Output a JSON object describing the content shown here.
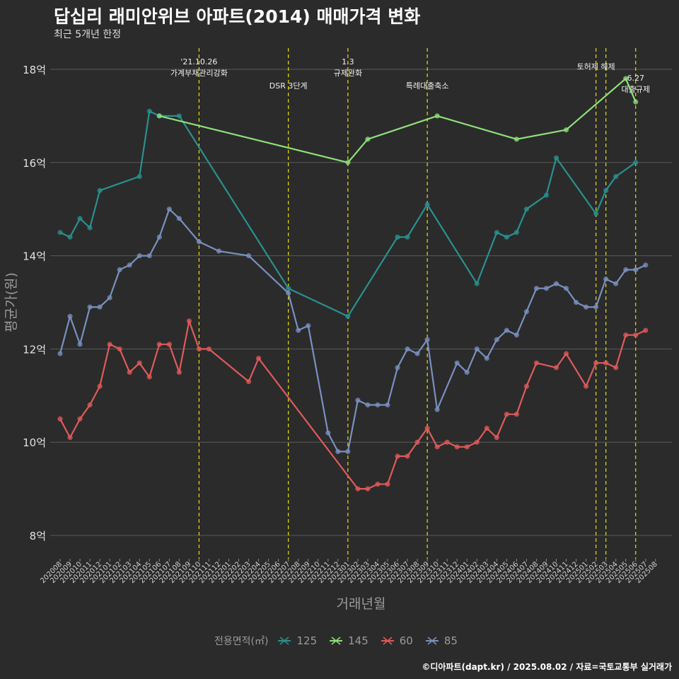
{
  "title": "답십리 래미안위브 아파트(2014) 매매가격 변화",
  "subtitle": "최근 5개년 한정",
  "caption": "©디아파트(dapt.kr) / 2025.08.02 / 자료=국토교통부 실거래가",
  "chart_data": {
    "type": "line",
    "xlabel": "거래년월",
    "ylabel": "평균가(원)",
    "ylim": [
      7.5,
      18.5
    ],
    "yticks": [
      8,
      10,
      12,
      14,
      16,
      18
    ],
    "ytick_labels": [
      "8억",
      "10억",
      "12억",
      "14억",
      "16억",
      "18억"
    ],
    "grid": true,
    "legend_title": "전용면적(㎡)",
    "legend_position": "bottom",
    "categories": [
      "202008",
      "202009",
      "202010",
      "202011",
      "202012",
      "202101",
      "202102",
      "202103",
      "202104",
      "202105",
      "202106",
      "202107",
      "202108",
      "202109",
      "202110",
      "202111",
      "202112",
      "202201",
      "202202",
      "202203",
      "202204",
      "202205",
      "202206",
      "202207",
      "202208",
      "202209",
      "202210",
      "202211",
      "202212",
      "202301",
      "202302",
      "202303",
      "202304",
      "202305",
      "202306",
      "202307",
      "202308",
      "202309",
      "202310",
      "202311",
      "202312",
      "202401",
      "202402",
      "202403",
      "202404",
      "202405",
      "202406",
      "202407",
      "202408",
      "202409",
      "202410",
      "202411",
      "202412",
      "202501",
      "202502",
      "202503",
      "202504",
      "202505",
      "202506",
      "202507",
      "202508"
    ],
    "series": [
      {
        "name": "125",
        "color": "#2a9090",
        "points": [
          [
            "202008",
            14.5
          ],
          [
            "202009",
            14.4
          ],
          [
            "202010",
            14.8
          ],
          [
            "202011",
            14.6
          ],
          [
            "202012",
            15.4
          ],
          [
            "202104",
            15.7
          ],
          [
            "202105",
            17.1
          ],
          [
            "202106",
            17.0
          ],
          [
            "202108",
            17.0
          ],
          [
            "202207",
            13.3
          ],
          [
            "202301",
            12.7
          ],
          [
            "202306",
            14.4
          ],
          [
            "202307",
            14.4
          ],
          [
            "202309",
            15.1
          ],
          [
            "202402",
            13.4
          ],
          [
            "202404",
            14.5
          ],
          [
            "202405",
            14.4
          ],
          [
            "202406",
            14.5
          ],
          [
            "202407",
            15.0
          ],
          [
            "202409",
            15.3
          ],
          [
            "202410",
            16.1
          ],
          [
            "202502",
            14.9
          ],
          [
            "202503",
            15.4
          ],
          [
            "202504",
            15.7
          ],
          [
            "202506",
            16.0
          ]
        ]
      },
      {
        "name": "145",
        "color": "#8fe07a",
        "points": [
          [
            "202106",
            17.0
          ],
          [
            "202301",
            16.0
          ],
          [
            "202303",
            16.5
          ],
          [
            "202310",
            17.0
          ],
          [
            "202406",
            16.5
          ],
          [
            "202411",
            16.7
          ],
          [
            "202505",
            17.8
          ],
          [
            "202506",
            17.3
          ]
        ]
      },
      {
        "name": "60",
        "color": "#e05a5a",
        "points": [
          [
            "202008",
            10.5
          ],
          [
            "202009",
            10.1
          ],
          [
            "202010",
            10.5
          ],
          [
            "202011",
            10.8
          ],
          [
            "202012",
            11.2
          ],
          [
            "202101",
            12.1
          ],
          [
            "202102",
            12.0
          ],
          [
            "202103",
            11.5
          ],
          [
            "202104",
            11.7
          ],
          [
            "202105",
            11.4
          ],
          [
            "202106",
            12.1
          ],
          [
            "202107",
            12.1
          ],
          [
            "202108",
            11.5
          ],
          [
            "202109",
            12.6
          ],
          [
            "202110",
            12.0
          ],
          [
            "202111",
            12.0
          ],
          [
            "202203",
            11.3
          ],
          [
            "202204",
            11.8
          ],
          [
            "202302",
            9.0
          ],
          [
            "202303",
            9.0
          ],
          [
            "202304",
            9.1
          ],
          [
            "202305",
            9.1
          ],
          [
            "202306",
            9.7
          ],
          [
            "202307",
            9.7
          ],
          [
            "202308",
            10.0
          ],
          [
            "202309",
            10.3
          ],
          [
            "202310",
            9.9
          ],
          [
            "202311",
            10.0
          ],
          [
            "202312",
            9.9
          ],
          [
            "202401",
            9.9
          ],
          [
            "202402",
            10.0
          ],
          [
            "202403",
            10.3
          ],
          [
            "202404",
            10.1
          ],
          [
            "202405",
            10.6
          ],
          [
            "202406",
            10.6
          ],
          [
            "202407",
            11.2
          ],
          [
            "202408",
            11.7
          ],
          [
            "202410",
            11.6
          ],
          [
            "202411",
            11.9
          ],
          [
            "202501",
            11.2
          ],
          [
            "202502",
            11.7
          ],
          [
            "202503",
            11.7
          ],
          [
            "202504",
            11.6
          ],
          [
            "202505",
            12.3
          ],
          [
            "202506",
            12.3
          ],
          [
            "202507",
            12.4
          ]
        ]
      },
      {
        "name": "85",
        "color": "#7a90c0",
        "points": [
          [
            "202008",
            11.9
          ],
          [
            "202009",
            12.7
          ],
          [
            "202010",
            12.1
          ],
          [
            "202011",
            12.9
          ],
          [
            "202012",
            12.9
          ],
          [
            "202101",
            13.1
          ],
          [
            "202102",
            13.7
          ],
          [
            "202103",
            13.8
          ],
          [
            "202104",
            14.0
          ],
          [
            "202105",
            14.0
          ],
          [
            "202106",
            14.4
          ],
          [
            "202107",
            15.0
          ],
          [
            "202108",
            14.8
          ],
          [
            "202110",
            14.3
          ],
          [
            "202112",
            14.1
          ],
          [
            "202203",
            14.0
          ],
          [
            "202207",
            13.2
          ],
          [
            "202208",
            12.4
          ],
          [
            "202209",
            12.5
          ],
          [
            "202211",
            10.2
          ],
          [
            "202212",
            9.8
          ],
          [
            "202301",
            9.8
          ],
          [
            "202302",
            10.9
          ],
          [
            "202303",
            10.8
          ],
          [
            "202304",
            10.8
          ],
          [
            "202305",
            10.8
          ],
          [
            "202306",
            11.6
          ],
          [
            "202307",
            12.0
          ],
          [
            "202308",
            11.9
          ],
          [
            "202309",
            12.2
          ],
          [
            "202310",
            10.7
          ],
          [
            "202312",
            11.7
          ],
          [
            "202401",
            11.5
          ],
          [
            "202402",
            12.0
          ],
          [
            "202403",
            11.8
          ],
          [
            "202404",
            12.2
          ],
          [
            "202405",
            12.4
          ],
          [
            "202406",
            12.3
          ],
          [
            "202407",
            12.8
          ],
          [
            "202408",
            13.3
          ],
          [
            "202409",
            13.3
          ],
          [
            "202410",
            13.4
          ],
          [
            "202411",
            13.3
          ],
          [
            "202412",
            13.0
          ],
          [
            "202501",
            12.9
          ],
          [
            "202502",
            12.9
          ],
          [
            "202503",
            13.5
          ],
          [
            "202504",
            13.4
          ],
          [
            "202505",
            13.7
          ],
          [
            "202506",
            13.7
          ],
          [
            "202507",
            13.8
          ]
        ]
      }
    ],
    "events": [
      {
        "x": "202110",
        "label": "'21.10.26\n가계부채관리강화"
      },
      {
        "x": "202207",
        "label": "DSR 3단계"
      },
      {
        "x": "202301",
        "label": "1.3\n규제완화"
      },
      {
        "x": "202309",
        "label": "특례대출축소"
      },
      {
        "x": "202502",
        "label": "토허제 해제"
      },
      {
        "x": "202503",
        "label": ""
      },
      {
        "x": "202506",
        "label": "6.27\n대출규제"
      }
    ]
  }
}
